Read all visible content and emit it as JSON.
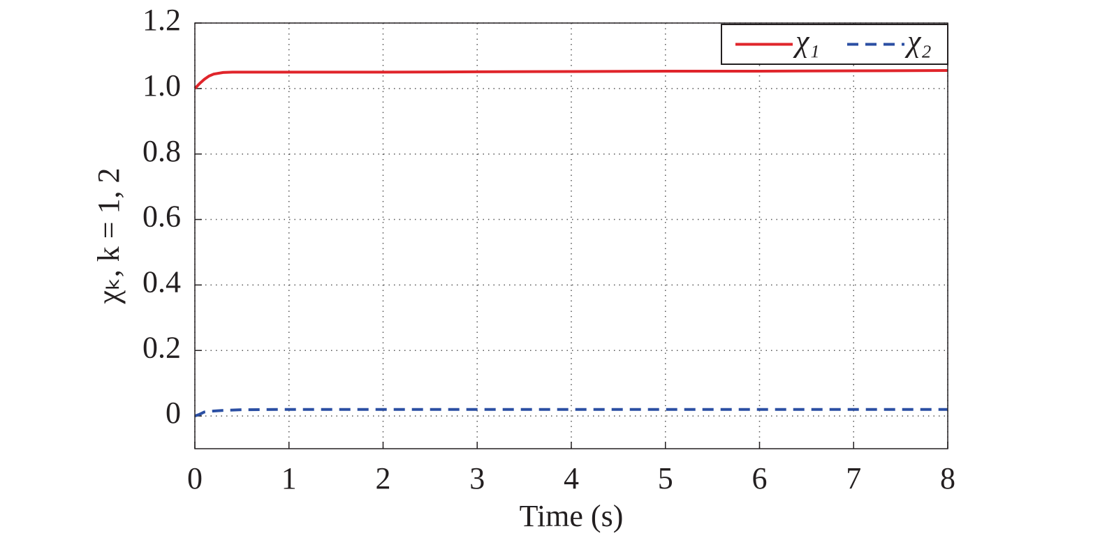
{
  "chart_data": {
    "type": "line",
    "xlabel": "Time (s)",
    "ylabel": "χₖ, k = 1, 2",
    "x": [
      0,
      0.05,
      0.1,
      0.15,
      0.2,
      0.3,
      0.4,
      0.5,
      1,
      2,
      3,
      4,
      5,
      6,
      7,
      8
    ],
    "series": [
      {
        "name": "χ₁",
        "color": "#e0252b",
        "linestyle": "solid",
        "values": [
          1.0,
          1.015,
          1.028,
          1.038,
          1.044,
          1.049,
          1.05,
          1.05,
          1.05,
          1.05,
          1.051,
          1.052,
          1.053,
          1.053,
          1.054,
          1.055
        ]
      },
      {
        "name": "χ₂",
        "color": "#2b4fa3",
        "linestyle": "dashed",
        "values": [
          0,
          0.005,
          0.012,
          0.014,
          0.015,
          0.017,
          0.018,
          0.019,
          0.02,
          0.02,
          0.02,
          0.02,
          0.02,
          0.02,
          0.02,
          0.02
        ]
      }
    ],
    "xlim": [
      0,
      8
    ],
    "xticks": [
      0,
      1,
      2,
      3,
      4,
      5,
      6,
      7,
      8
    ],
    "ylim": [
      -0.1,
      1.2
    ],
    "yticks": [
      0,
      0.2,
      0.4,
      0.6,
      0.8,
      {
        "value": 1,
        "label": "1.0"
      },
      1.2
    ],
    "grid": true,
    "legend": "upper-right"
  }
}
